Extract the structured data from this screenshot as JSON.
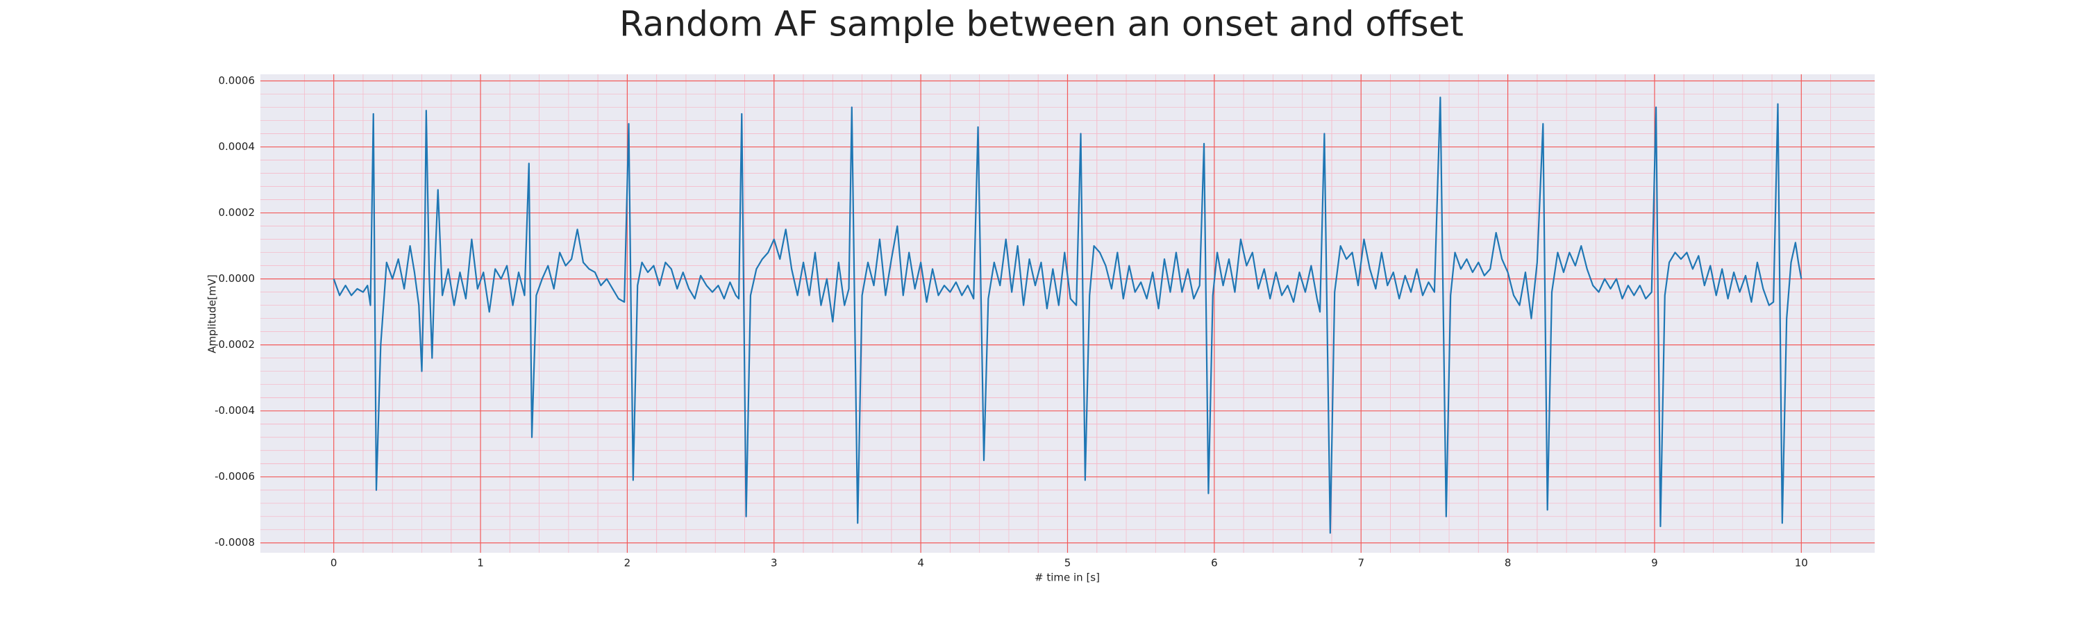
{
  "chart_data": {
    "type": "line",
    "title": "Random AF sample between an onset and offset",
    "xlabel": "# time in [s]",
    "ylabel": "Amplitude[mV]",
    "color": "#1f77b4",
    "background": "#eaeaf2",
    "grid": true,
    "minor_grid": true,
    "grid_color": "#f25a5a",
    "minor_grid_color": "#f5bccb",
    "xlim": [
      -0.5,
      10.5
    ],
    "ylim": [
      -0.00083,
      0.00062
    ],
    "xticks": [
      0,
      1,
      2,
      3,
      4,
      5,
      6,
      7,
      8,
      9,
      10
    ],
    "yticks": [
      -0.0008,
      -0.0006,
      -0.0004,
      -0.0002,
      {
        "value": 0,
        "label": "0.0000"
      },
      0.0002,
      0.0004,
      0.0006
    ],
    "x": [
      0,
      0.04,
      0.08,
      0.12,
      0.16,
      0.2,
      0.23,
      0.25,
      0.27,
      0.29,
      0.32,
      0.36,
      0.4,
      0.44,
      0.48,
      0.52,
      0.55,
      0.58,
      0.6,
      0.62,
      0.63,
      0.65,
      0.67,
      0.69,
      0.71,
      0.74,
      0.78,
      0.82,
      0.86,
      0.9,
      0.94,
      0.98,
      1.02,
      1.06,
      1.1,
      1.14,
      1.18,
      1.22,
      1.26,
      1.3,
      1.33,
      1.35,
      1.38,
      1.42,
      1.46,
      1.5,
      1.54,
      1.58,
      1.62,
      1.66,
      1.7,
      1.74,
      1.78,
      1.82,
      1.86,
      1.9,
      1.94,
      1.98,
      2.01,
      2.04,
      2.07,
      2.1,
      2.14,
      2.18,
      2.22,
      2.26,
      2.3,
      2.34,
      2.38,
      2.42,
      2.46,
      2.5,
      2.54,
      2.58,
      2.62,
      2.66,
      2.7,
      2.74,
      2.76,
      2.78,
      2.81,
      2.84,
      2.88,
      2.92,
      2.96,
      3.0,
      3.04,
      3.08,
      3.12,
      3.16,
      3.2,
      3.24,
      3.28,
      3.32,
      3.36,
      3.4,
      3.44,
      3.48,
      3.51,
      3.53,
      3.57,
      3.6,
      3.64,
      3.68,
      3.72,
      3.76,
      3.8,
      3.84,
      3.88,
      3.92,
      3.96,
      4.0,
      4.04,
      4.08,
      4.12,
      4.16,
      4.2,
      4.24,
      4.28,
      4.32,
      4.36,
      4.39,
      4.43,
      4.46,
      4.5,
      4.54,
      4.58,
      4.62,
      4.66,
      4.7,
      4.74,
      4.78,
      4.82,
      4.86,
      4.9,
      4.94,
      4.98,
      5.02,
      5.06,
      5.09,
      5.12,
      5.15,
      5.18,
      5.22,
      5.26,
      5.3,
      5.34,
      5.38,
      5.42,
      5.46,
      5.5,
      5.54,
      5.58,
      5.62,
      5.66,
      5.7,
      5.74,
      5.78,
      5.82,
      5.86,
      5.9,
      5.93,
      5.96,
      5.99,
      6.02,
      6.06,
      6.1,
      6.14,
      6.18,
      6.22,
      6.26,
      6.3,
      6.34,
      6.38,
      6.42,
      6.46,
      6.5,
      6.54,
      6.58,
      6.62,
      6.66,
      6.7,
      6.72,
      6.75,
      6.79,
      6.82,
      6.86,
      6.9,
      6.94,
      6.98,
      7.02,
      7.06,
      7.1,
      7.14,
      7.18,
      7.22,
      7.26,
      7.3,
      7.34,
      7.38,
      7.42,
      7.46,
      7.5,
      7.54,
      7.58,
      7.61,
      7.64,
      7.68,
      7.72,
      7.76,
      7.8,
      7.84,
      7.88,
      7.92,
      7.96,
      8.0,
      8.04,
      8.08,
      8.12,
      8.16,
      8.2,
      8.24,
      8.27,
      8.3,
      8.34,
      8.38,
      8.42,
      8.46,
      8.5,
      8.54,
      8.58,
      8.62,
      8.66,
      8.7,
      8.74,
      8.78,
      8.82,
      8.86,
      8.9,
      8.94,
      8.98,
      9.01,
      9.04,
      9.07,
      9.1,
      9.14,
      9.18,
      9.22,
      9.26,
      9.3,
      9.34,
      9.38,
      9.42,
      9.46,
      9.5,
      9.54,
      9.58,
      9.62,
      9.66,
      9.7,
      9.74,
      9.78,
      9.81,
      9.84,
      9.87,
      9.9,
      9.93,
      9.96,
      9.98,
      10.0
    ],
    "values": [
      0,
      -5e-05,
      -2e-05,
      -5e-05,
      -3e-05,
      -4e-05,
      -2e-05,
      -8e-05,
      0.0005,
      -0.00064,
      -0.0002,
      5e-05,
      0,
      6e-05,
      -3e-05,
      0.0001,
      2e-05,
      -8e-05,
      -0.00028,
      0.0001,
      0.00051,
      2e-05,
      -0.00024,
      5e-05,
      0.00027,
      -5e-05,
      3e-05,
      -8e-05,
      2e-05,
      -6e-05,
      0.00012,
      -3e-05,
      2e-05,
      -0.0001,
      3e-05,
      0,
      4e-05,
      -8e-05,
      2e-05,
      -5e-05,
      0.00035,
      -0.00048,
      -5e-05,
      0,
      4e-05,
      -3e-05,
      8e-05,
      4e-05,
      6e-05,
      0.00015,
      5e-05,
      3e-05,
      2e-05,
      -2e-05,
      0,
      -3e-05,
      -6e-05,
      -7e-05,
      0.00047,
      -0.00061,
      -2e-05,
      5e-05,
      2e-05,
      4e-05,
      -2e-05,
      5e-05,
      3e-05,
      -3e-05,
      2e-05,
      -3e-05,
      -6e-05,
      1e-05,
      -2e-05,
      -4e-05,
      -2e-05,
      -6e-05,
      -1e-05,
      -5e-05,
      -6e-05,
      0.0005,
      -0.00072,
      -5e-05,
      3e-05,
      6e-05,
      8e-05,
      0.00012,
      6e-05,
      0.00015,
      3e-05,
      -5e-05,
      5e-05,
      -5e-05,
      8e-05,
      -8e-05,
      0,
      -0.00013,
      5e-05,
      -8e-05,
      -3e-05,
      0.00052,
      -0.00074,
      -5e-05,
      5e-05,
      -2e-05,
      0.00012,
      -5e-05,
      6e-05,
      0.00016,
      -5e-05,
      8e-05,
      -3e-05,
      5e-05,
      -7e-05,
      3e-05,
      -5e-05,
      -2e-05,
      -4e-05,
      -1e-05,
      -5e-05,
      -2e-05,
      -6e-05,
      0.00046,
      -0.00055,
      -6e-05,
      5e-05,
      -2e-05,
      0.00012,
      -4e-05,
      0.0001,
      -8e-05,
      6e-05,
      -2e-05,
      5e-05,
      -9e-05,
      3e-05,
      -8e-05,
      8e-05,
      -6e-05,
      -8e-05,
      0.00044,
      -0.00061,
      -5e-05,
      0.0001,
      8e-05,
      4e-05,
      -3e-05,
      8e-05,
      -6e-05,
      4e-05,
      -4e-05,
      -1e-05,
      -6e-05,
      2e-05,
      -9e-05,
      6e-05,
      -4e-05,
      8e-05,
      -4e-05,
      3e-05,
      -6e-05,
      -2e-05,
      0.00041,
      -0.00065,
      -5e-05,
      8e-05,
      -2e-05,
      6e-05,
      -4e-05,
      0.00012,
      4e-05,
      8e-05,
      -3e-05,
      3e-05,
      -6e-05,
      2e-05,
      -5e-05,
      -2e-05,
      -7e-05,
      2e-05,
      -4e-05,
      4e-05,
      -6e-05,
      -0.0001,
      0.00044,
      -0.00077,
      -4e-05,
      0.0001,
      6e-05,
      8e-05,
      -2e-05,
      0.00012,
      3e-05,
      -3e-05,
      8e-05,
      -2e-05,
      2e-05,
      -6e-05,
      1e-05,
      -4e-05,
      3e-05,
      -5e-05,
      -1e-05,
      -4e-05,
      0.00055,
      -0.00072,
      -5e-05,
      8e-05,
      3e-05,
      6e-05,
      2e-05,
      5e-05,
      1e-05,
      3e-05,
      0.00014,
      6e-05,
      2e-05,
      -5e-05,
      -8e-05,
      2e-05,
      -0.00012,
      5e-05,
      0.00047,
      -0.0007,
      -4e-05,
      8e-05,
      2e-05,
      8e-05,
      4e-05,
      0.0001,
      3e-05,
      -2e-05,
      -4e-05,
      0,
      -3e-05,
      0,
      -6e-05,
      -2e-05,
      -5e-05,
      -2e-05,
      -6e-05,
      -4e-05,
      0.00052,
      -0.00075,
      -5e-05,
      5e-05,
      8e-05,
      6e-05,
      8e-05,
      3e-05,
      7e-05,
      -2e-05,
      4e-05,
      -5e-05,
      3e-05,
      -6e-05,
      2e-05,
      -4e-05,
      1e-05,
      -7e-05,
      5e-05,
      -3e-05,
      -8e-05,
      -7e-05,
      0.00053,
      -0.00074,
      -0.00012,
      5e-05,
      0.00011,
      5e-05,
      0
    ]
  }
}
